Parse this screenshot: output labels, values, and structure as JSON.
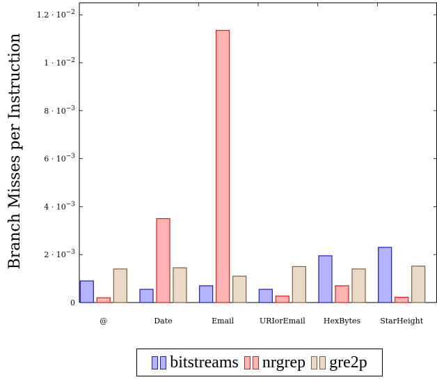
{
  "chart_data": {
    "type": "bar",
    "title": "",
    "xlabel": "",
    "ylabel": "Branch Misses per Instruction",
    "ylim": [
      0,
      0.0125
    ],
    "categories": [
      "@",
      "Date",
      "Email",
      "URIorEmail",
      "HexBytes",
      "StarHeight"
    ],
    "yticks": [
      {
        "value": 0,
        "label": "0"
      },
      {
        "value": 0.002,
        "label": "2 · 10",
        "exp": "−3"
      },
      {
        "value": 0.004,
        "label": "4 · 10",
        "exp": "−3"
      },
      {
        "value": 0.006,
        "label": "6 · 10",
        "exp": "−3"
      },
      {
        "value": 0.008,
        "label": "8 · 10",
        "exp": "−3"
      },
      {
        "value": 0.01,
        "label": "1 · 10",
        "exp": "−2"
      },
      {
        "value": 0.012,
        "label": "1.2 · 10",
        "exp": "−2"
      }
    ],
    "series": [
      {
        "name": "bitstreams",
        "fill": "#b3b3ff",
        "stroke": "#1a1acc",
        "values": [
          0.0009,
          0.00055,
          0.0007,
          0.00055,
          0.00195,
          0.0023
        ]
      },
      {
        "name": "nrgrep",
        "fill": "#ffb3b3",
        "stroke": "#e61a1a",
        "values": [
          0.0002,
          0.0035,
          0.01135,
          0.00027,
          0.0007,
          0.00022
        ]
      },
      {
        "name": "gre2p",
        "fill": "#ead9c4",
        "stroke": "#80603f",
        "values": [
          0.0014,
          0.00145,
          0.0011,
          0.0015,
          0.0014,
          0.00152
        ]
      }
    ],
    "grid": false,
    "legend_position": "bottom"
  }
}
